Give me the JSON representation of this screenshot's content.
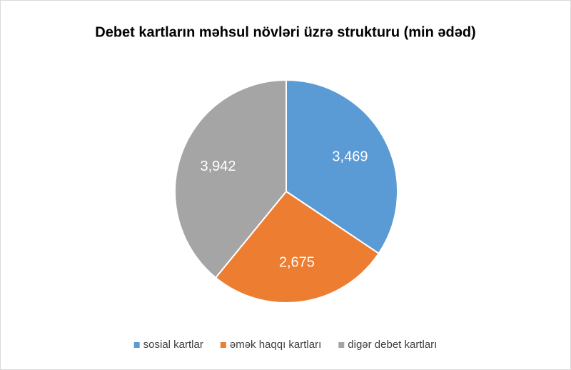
{
  "chart_data": {
    "type": "pie",
    "title": "Debet kartların məhsul növləri üzrə strukturu (min ədəd)",
    "categories": [
      "sosial kartlar",
      "əmək haqqı kartları",
      "digər debet kartları"
    ],
    "values": [
      3469,
      2675,
      3942
    ],
    "value_labels": [
      "3,469",
      "2,675",
      "3,942"
    ],
    "colors": [
      "#5b9bd5",
      "#ed7d31",
      "#a5a5a5"
    ],
    "legend": "bottom"
  }
}
